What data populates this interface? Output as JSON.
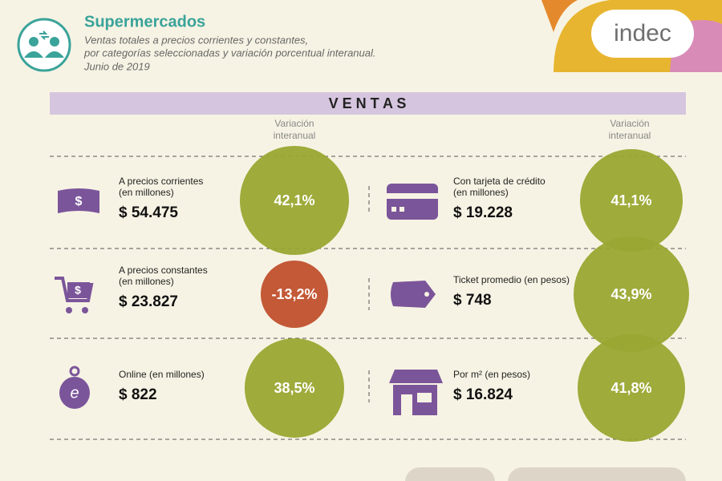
{
  "header": {
    "title": "Supermercados",
    "subtitle": [
      "Ventas totales a precios corrientes y constantes,",
      "por categorías seleccionadas y variación porcentual interanual."
    ],
    "date": "Junio de 2019",
    "logo": "indec"
  },
  "section": "V E N T A S",
  "column_header": [
    "Variación",
    "interanual"
  ],
  "items": [
    {
      "lines": [
        "A precios corrientes",
        "(en millones)"
      ],
      "amount": "$ 54.475",
      "variation": "42,1%"
    },
    {
      "lines": [
        "A precios constantes",
        "(en millones)"
      ],
      "amount": "$ 23.827",
      "variation": "-13,2%"
    },
    {
      "lines": [
        "Online (en millones)"
      ],
      "amount": "$ 822",
      "variation": "38,5%"
    },
    {
      "lines": [
        "Con tarjeta de crédito",
        "(en millones)"
      ],
      "amount": "$ 19.228",
      "variation": "41,1%"
    },
    {
      "lines": [
        "Ticket promedio (en pesos)"
      ],
      "amount": "$ 748",
      "variation": "43,9%"
    },
    {
      "lines": [
        "Por m² (en pesos)"
      ],
      "amount": "$ 16.824",
      "variation": "41,8%"
    }
  ]
}
